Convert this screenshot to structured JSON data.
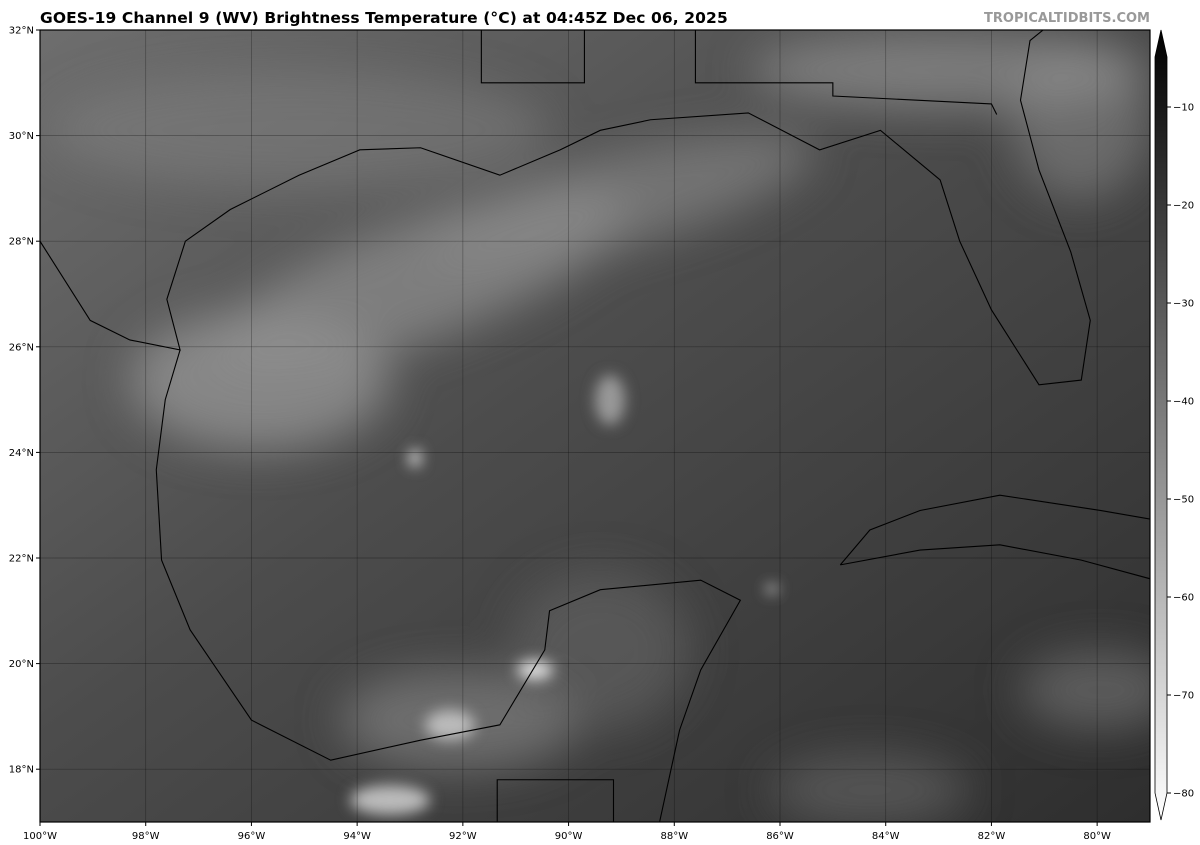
{
  "title": "GOES-19 Channel 9 (WV) Brightness Temperature (°C) at 04:45Z Dec 06, 2025",
  "brand": "TROPICALTIDBITS.COM",
  "map": {
    "extent": {
      "lon": [
        -100,
        -79
      ],
      "lat": [
        17,
        32
      ]
    },
    "lat_ticks": [
      {
        "v": 32,
        "label": "32°N"
      },
      {
        "v": 30,
        "label": "30°N"
      },
      {
        "v": 28,
        "label": "28°N"
      },
      {
        "v": 26,
        "label": "26°N"
      },
      {
        "v": 24,
        "label": "24°N"
      },
      {
        "v": 22,
        "label": "22°N"
      },
      {
        "v": 20,
        "label": "20°N"
      },
      {
        "v": 18,
        "label": "18°N"
      }
    ],
    "lon_ticks": [
      {
        "v": -100,
        "label": "100°W"
      },
      {
        "v": -98,
        "label": "98°W"
      },
      {
        "v": -96,
        "label": "96°W"
      },
      {
        "v": -94,
        "label": "94°W"
      },
      {
        "v": -92,
        "label": "92°W"
      },
      {
        "v": -90,
        "label": "90°W"
      },
      {
        "v": -88,
        "label": "88°W"
      },
      {
        "v": -86,
        "label": "86°W"
      },
      {
        "v": -84,
        "label": "84°W"
      },
      {
        "v": -82,
        "label": "82°W"
      },
      {
        "v": -80,
        "label": "80°W"
      }
    ]
  },
  "colorbar": {
    "range": [
      -80,
      -7
    ],
    "colors": {
      "warm": "#000000",
      "cold": "#ffffff"
    },
    "ticks": [
      {
        "v": -10,
        "label": "−10"
      },
      {
        "v": -20,
        "label": "−20"
      },
      {
        "v": -30,
        "label": "−30"
      },
      {
        "v": -40,
        "label": "−40"
      },
      {
        "v": -50,
        "label": "−50"
      },
      {
        "v": -60,
        "label": "−60"
      },
      {
        "v": -70,
        "label": "−70"
      },
      {
        "v": -80,
        "label": "−80"
      }
    ]
  }
}
